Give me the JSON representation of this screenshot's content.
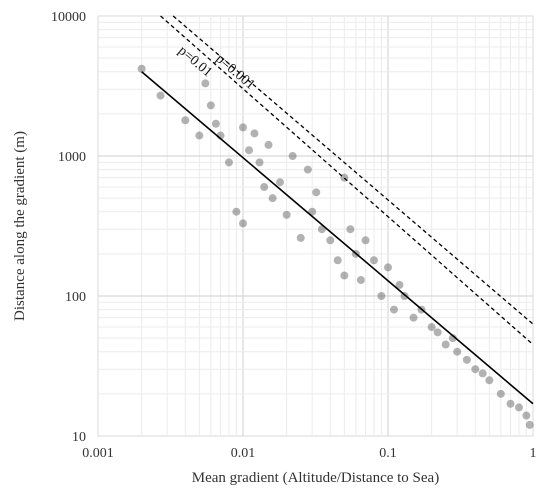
{
  "chart_data": {
    "type": "scatter",
    "title": "",
    "xlabel": "Mean gradient (Altitude/Distance to Sea)",
    "ylabel": "Distance along the gradient (m)",
    "xscale": "log",
    "yscale": "log",
    "xlim": [
      0.001,
      1
    ],
    "ylim": [
      10,
      10000
    ],
    "grid": true,
    "legend": "none",
    "xticks": [
      {
        "value": 0.001,
        "label": "0.001"
      },
      {
        "value": 0.01,
        "label": "0.01"
      },
      {
        "value": 0.1,
        "label": "0.1"
      },
      {
        "value": 1,
        "label": "1"
      }
    ],
    "yticks": [
      {
        "value": 10,
        "label": "10"
      },
      {
        "value": 100,
        "label": "100"
      },
      {
        "value": 1000,
        "label": "1000"
      },
      {
        "value": 10000,
        "label": "10000"
      }
    ],
    "lines": [
      {
        "label": "",
        "style": "solid",
        "x": [
          0.002,
          1
        ],
        "y": [
          4000,
          17
        ]
      },
      {
        "label": "",
        "style": "dashed",
        "x": [
          0.0027,
          1
        ],
        "y": [
          10000,
          45
        ]
      },
      {
        "label": "",
        "style": "dashed",
        "x": [
          0.0033,
          1
        ],
        "y": [
          10000,
          63
        ]
      }
    ],
    "annotations": [
      {
        "text": "p=0.01",
        "x": 0.0045,
        "y": 4500
      },
      {
        "text": "p=0.001",
        "x": 0.0085,
        "y": 3800
      }
    ],
    "points": {
      "x": [
        0.002,
        0.0027,
        0.004,
        0.005,
        0.0055,
        0.006,
        0.0065,
        0.007,
        0.008,
        0.009,
        0.01,
        0.01,
        0.011,
        0.012,
        0.013,
        0.014,
        0.015,
        0.016,
        0.018,
        0.02,
        0.022,
        0.025,
        0.028,
        0.03,
        0.032,
        0.035,
        0.04,
        0.045,
        0.05,
        0.05,
        0.055,
        0.06,
        0.065,
        0.07,
        0.08,
        0.09,
        0.1,
        0.11,
        0.12,
        0.13,
        0.15,
        0.17,
        0.2,
        0.22,
        0.25,
        0.28,
        0.3,
        0.35,
        0.4,
        0.45,
        0.5,
        0.6,
        0.7,
        0.8,
        0.9,
        0.95
      ],
      "y": [
        4200,
        2700,
        1800,
        1400,
        3300,
        2300,
        1700,
        1400,
        900,
        400,
        1600,
        330,
        1100,
        1450,
        900,
        600,
        1200,
        500,
        650,
        380,
        1000,
        260,
        800,
        400,
        550,
        300,
        250,
        180,
        700,
        140,
        300,
        200,
        130,
        250,
        180,
        100,
        160,
        80,
        120,
        100,
        70,
        80,
        60,
        55,
        45,
        50,
        40,
        35,
        30,
        28,
        25,
        20,
        17,
        16,
        14,
        12
      ]
    }
  }
}
